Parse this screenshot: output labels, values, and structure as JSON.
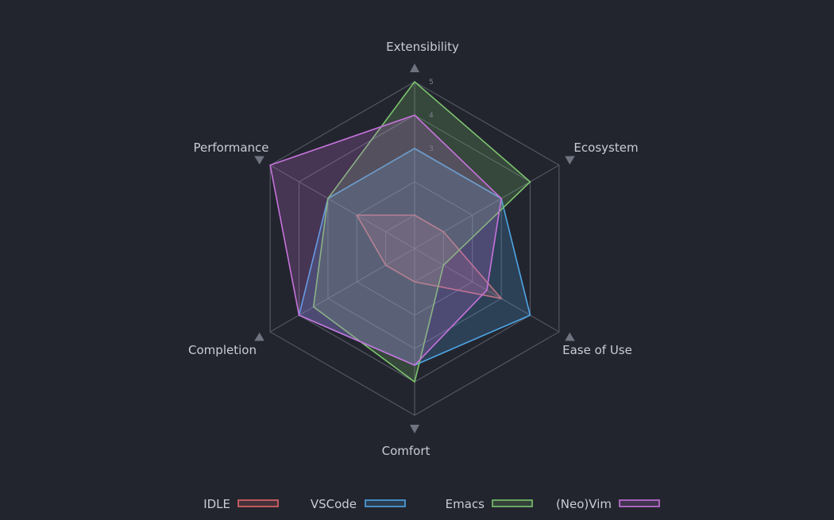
{
  "chart_data": {
    "type": "radar",
    "axes": [
      "Extensibility",
      "Ecosystem",
      "Ease of Use",
      "Comfort",
      "Completion",
      "Performance"
    ],
    "rmax": 5,
    "tick_values": [
      3,
      4,
      5
    ],
    "tick_labels": [
      "3",
      "4",
      "5"
    ],
    "grid": true,
    "legend_position": "bottom",
    "series": [
      {
        "name": "IDLE",
        "color": "#e0676a",
        "values": [
          1,
          1,
          3,
          1,
          1,
          2
        ]
      },
      {
        "name": "VSCode",
        "color": "#4ea6e6",
        "values": [
          3,
          3,
          4,
          3.5,
          4,
          3
        ]
      },
      {
        "name": "Emacs",
        "color": "#7cc36f",
        "values": [
          5,
          4,
          1,
          4,
          3.5,
          3
        ]
      },
      {
        "name": "(Neo)Vim",
        "color": "#c673dc",
        "values": [
          4,
          3,
          2.5,
          3.5,
          4,
          5
        ]
      }
    ]
  }
}
